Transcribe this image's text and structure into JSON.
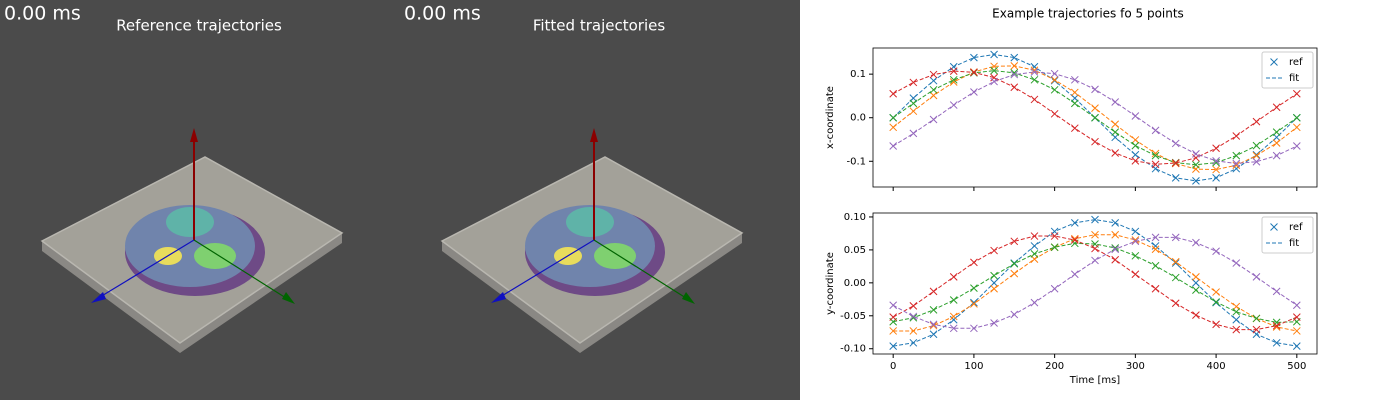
{
  "views": [
    {
      "time": "0.00 ms",
      "title": "Reference trajectories"
    },
    {
      "time": "0.00 ms",
      "title": "Fitted trajectories"
    }
  ],
  "figure": {
    "title": "Example trajectories fo 5 points"
  },
  "chart_data": [
    {
      "type": "line",
      "ylabel": "x-coordinate",
      "legend_labels": [
        "ref",
        "fit"
      ],
      "legend": "upper right",
      "marker": "x",
      "fit_style": "dashed",
      "x": [
        0,
        25,
        50,
        75,
        100,
        125,
        150,
        175,
        200,
        225,
        250,
        275,
        300,
        325,
        350,
        375,
        400,
        425,
        450,
        475,
        500
      ],
      "xlim": [
        -25,
        525
      ],
      "xticks": [
        0,
        100,
        200,
        300,
        400,
        500
      ],
      "show_xtick_labels": false,
      "ylim": [
        -0.159,
        0.16
      ],
      "yticks": [
        0.1,
        {
          "value": 0,
          "label": "0.0"
        },
        -0.1
      ],
      "series": [
        {
          "color": "#1f77b4",
          "values": [
            0,
            0.045,
            0.085,
            0.117,
            0.138,
            0.145,
            0.138,
            0.117,
            0.085,
            0.045,
            0,
            -0.045,
            -0.085,
            -0.117,
            -0.138,
            -0.145,
            -0.138,
            -0.117,
            -0.085,
            -0.045,
            0
          ]
        },
        {
          "color": "#ff7f0e",
          "values": [
            -0.022,
            0.015,
            0.051,
            0.082,
            0.105,
            0.118,
            0.119,
            0.109,
            0.087,
            0.058,
            0.022,
            -0.015,
            -0.051,
            -0.082,
            -0.105,
            -0.118,
            -0.119,
            -0.109,
            -0.087,
            -0.058,
            -0.022
          ]
        },
        {
          "color": "#2ca02c",
          "values": [
            0,
            0.033,
            0.064,
            0.087,
            0.103,
            0.108,
            0.103,
            0.087,
            0.064,
            0.033,
            0,
            -0.033,
            -0.064,
            -0.087,
            -0.103,
            -0.108,
            -0.103,
            -0.087,
            -0.064,
            -0.033,
            0
          ]
        },
        {
          "color": "#d62728",
          "values": [
            0.055,
            0.081,
            0.099,
            0.107,
            0.104,
            0.092,
            0.07,
            0.042,
            0.009,
            -0.024,
            -0.055,
            -0.081,
            -0.099,
            -0.107,
            -0.104,
            -0.092,
            -0.07,
            -0.042,
            -0.009,
            0.024,
            0.055
          ]
        },
        {
          "color": "#9467bd",
          "values": [
            -0.065,
            -0.036,
            -0.004,
            0.029,
            0.059,
            0.083,
            0.099,
            0.105,
            0.101,
            0.087,
            0.065,
            0.036,
            0.004,
            -0.029,
            -0.059,
            -0.083,
            -0.099,
            -0.105,
            -0.101,
            -0.087,
            -0.065
          ]
        }
      ]
    },
    {
      "type": "line",
      "ylabel": "y-coordinate",
      "xlabel": "Time [ms]",
      "legend_labels": [
        "ref",
        "fit"
      ],
      "legend": "upper right",
      "marker": "x",
      "fit_style": "dashed",
      "x": [
        0,
        25,
        50,
        75,
        100,
        125,
        150,
        175,
        200,
        225,
        250,
        275,
        300,
        325,
        350,
        375,
        400,
        425,
        450,
        475,
        500
      ],
      "xlim": [
        -25,
        525
      ],
      "xticks": [
        0,
        100,
        200,
        300,
        400,
        500
      ],
      "show_xtick_labels": true,
      "ylim": [
        -0.108,
        0.106
      ],
      "yticks": [
        {
          "value": 0.1,
          "label": "0.10"
        },
        0.05,
        {
          "value": 0,
          "label": "0.00"
        },
        -0.05,
        {
          "value": -0.1,
          "label": "-0.10"
        }
      ],
      "series": [
        {
          "color": "#1f77b4",
          "values": [
            -0.096,
            -0.091,
            -0.078,
            -0.056,
            -0.03,
            0,
            0.03,
            0.056,
            0.078,
            0.091,
            0.096,
            0.091,
            0.078,
            0.056,
            0.03,
            0,
            -0.03,
            -0.056,
            -0.078,
            -0.091,
            -0.096
          ]
        },
        {
          "color": "#ff7f0e",
          "values": [
            -0.073,
            -0.073,
            -0.065,
            -0.051,
            -0.032,
            -0.009,
            0.014,
            0.036,
            0.054,
            0.067,
            0.073,
            0.073,
            0.065,
            0.051,
            0.032,
            0.009,
            -0.014,
            -0.036,
            -0.054,
            -0.067,
            -0.073
          ]
        },
        {
          "color": "#2ca02c",
          "values": [
            -0.059,
            -0.053,
            -0.041,
            -0.026,
            -0.008,
            0.011,
            0.029,
            0.044,
            0.054,
            0.06,
            0.059,
            0.053,
            0.041,
            0.026,
            0.008,
            -0.011,
            -0.029,
            -0.044,
            -0.054,
            -0.06,
            -0.059
          ]
        },
        {
          "color": "#d62728",
          "values": [
            -0.052,
            -0.035,
            -0.013,
            0.009,
            0.031,
            0.049,
            0.063,
            0.071,
            0.071,
            0.065,
            0.052,
            0.035,
            0.013,
            -0.009,
            -0.031,
            -0.049,
            -0.063,
            -0.071,
            -0.071,
            -0.065,
            -0.052
          ]
        },
        {
          "color": "#9467bd",
          "values": [
            -0.034,
            -0.051,
            -0.063,
            -0.069,
            -0.069,
            -0.061,
            -0.048,
            -0.03,
            -0.009,
            0.013,
            0.034,
            0.051,
            0.063,
            0.069,
            0.069,
            0.061,
            0.048,
            0.03,
            0.009,
            -0.013,
            -0.034
          ]
        }
      ]
    }
  ]
}
